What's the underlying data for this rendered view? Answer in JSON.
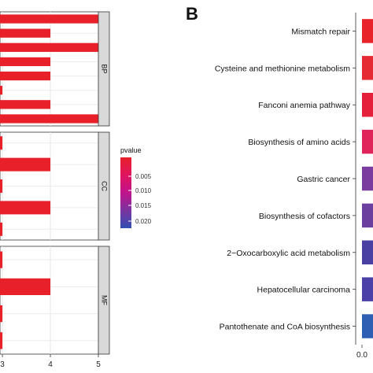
{
  "panel_b_letter": "B",
  "chart_data": [
    {
      "type": "bar",
      "orientation": "horizontal",
      "facets": [
        {
          "name": "BP",
          "values": [
            5,
            4,
            5,
            4,
            4,
            3,
            4,
            5
          ]
        },
        {
          "name": "CC",
          "values": [
            3,
            4,
            3,
            4,
            3
          ]
        },
        {
          "name": "MF",
          "values": [
            3,
            4,
            3,
            3
          ]
        }
      ],
      "x_ticks": [
        "3",
        "4",
        "5"
      ],
      "xlim": [
        2.95,
        5.0
      ],
      "color_encoding": "pvalue",
      "legend": {
        "title": "pvalue",
        "ticks": [
          "0.005",
          "0.010",
          "0.015",
          "0.020"
        ],
        "placement": "right",
        "colors": [
          "#e8202a",
          "#e0155f",
          "#c0148c",
          "#7a34a0",
          "#3050b0"
        ]
      },
      "grid": true
    },
    {
      "type": "bar",
      "orientation": "horizontal",
      "categories": [
        "Mismatch repair",
        "Cysteine and methionine metabolism",
        "Fanconi anemia pathway",
        "Biosynthesis of amino acids",
        "Gastric cancer",
        "Biosynthesis of cofactors",
        "2−Oxocarboxylic acid metabolism",
        "Hepatocellular carcinoma",
        "Pantothenate and CoA biosynthesis"
      ],
      "bar_colors": [
        "#e8232a",
        "#e52a33",
        "#e5203a",
        "#e0255a",
        "#7a3c9e",
        "#6a3f9d",
        "#4a3fa2",
        "#4a40a8",
        "#2f5fb3"
      ],
      "x_ticks": [
        "0.0"
      ],
      "grid": true
    }
  ]
}
